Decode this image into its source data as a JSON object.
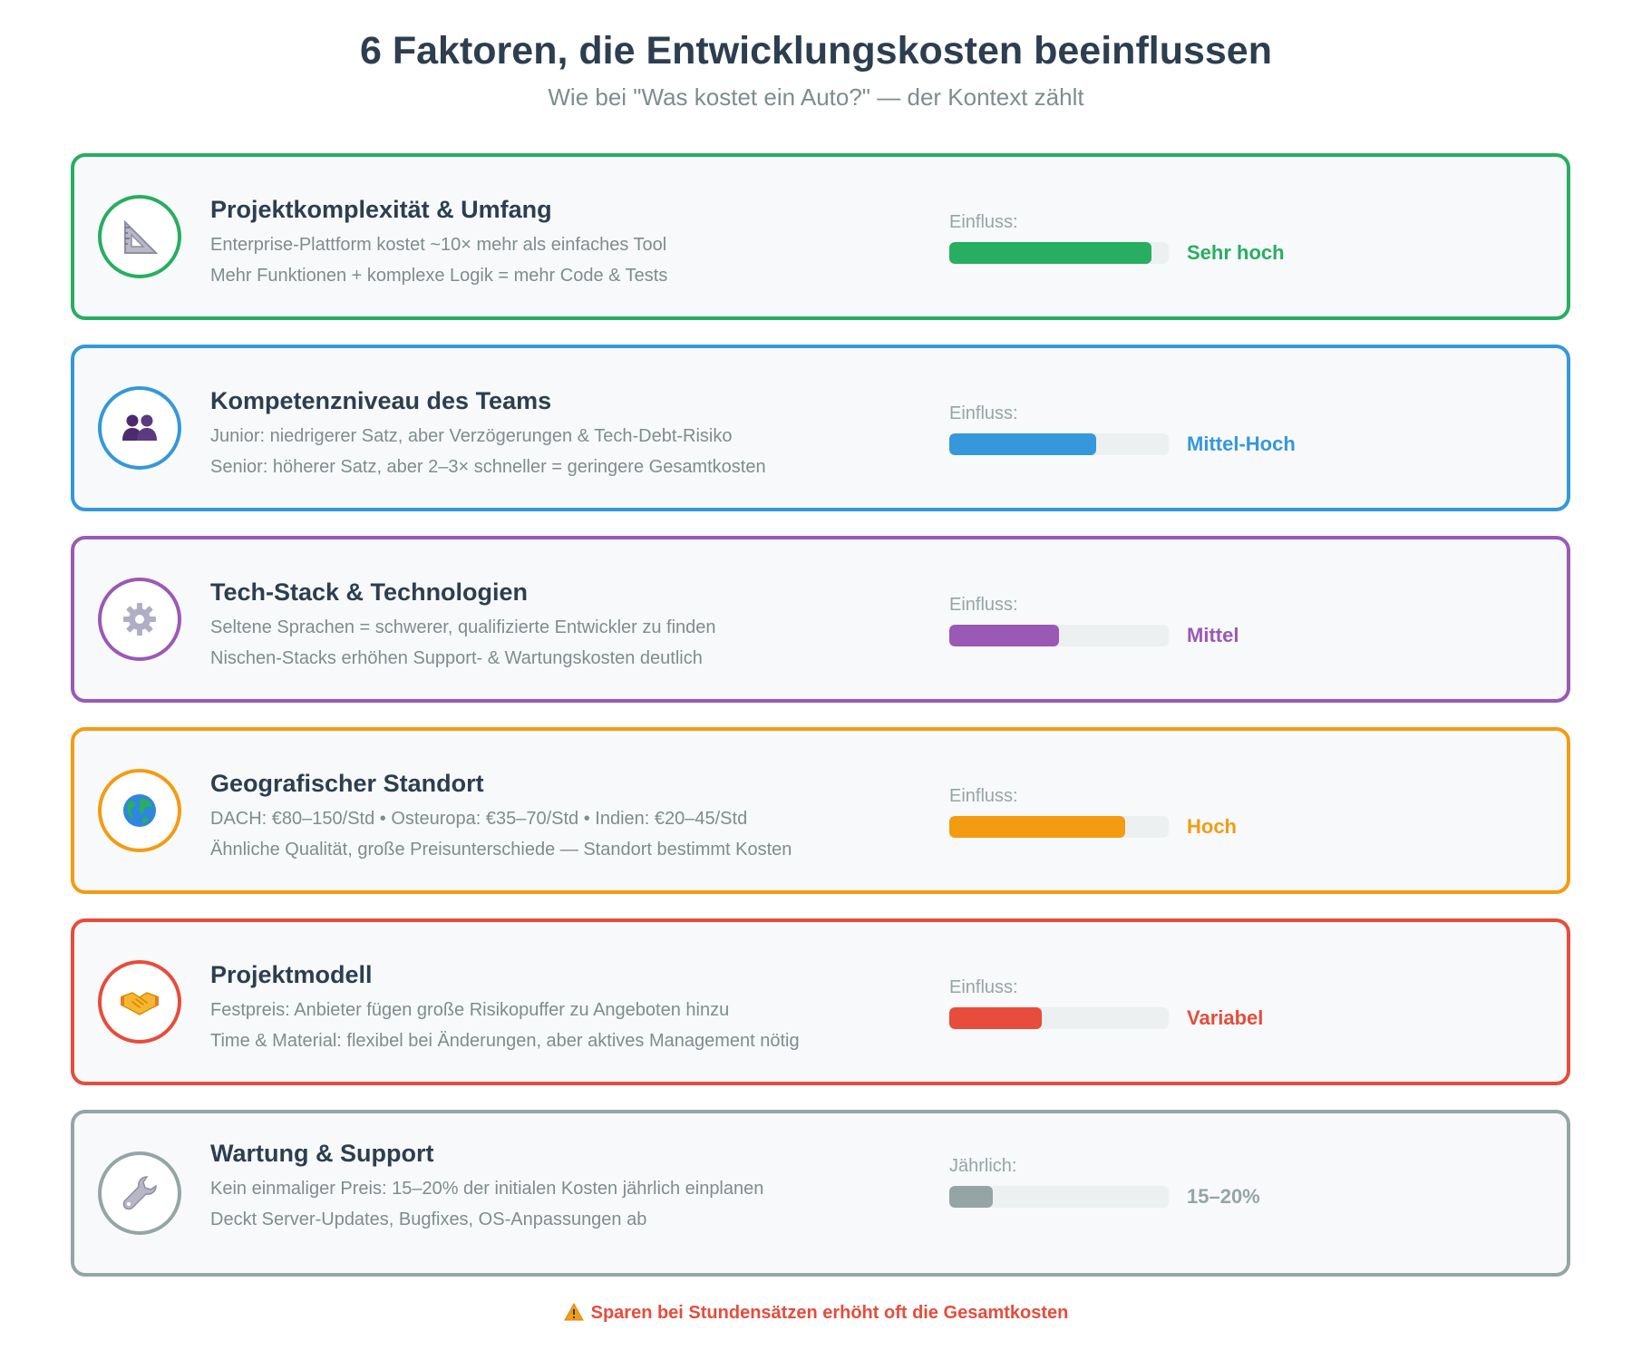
{
  "header": {
    "title": "6 Faktoren, die Entwicklungskosten beeinflussen",
    "subtitle": "Wie bei \"Was kostet ein Auto?\" — der Kontext zählt"
  },
  "factors": [
    {
      "title": "Projektkomplexität & Umfang",
      "line1": "Enterprise-Plattform kostet ~10× mehr als einfaches Tool",
      "line2": "Mehr Funktionen + komplexe Logik = mehr Code & Tests",
      "impact_label": "Einfluss:",
      "impact_value": "Sehr hoch",
      "impact_level": 0.92,
      "color": "#27ae60",
      "icon": "triangle-ruler-icon"
    },
    {
      "title": "Kompetenzniveau des Teams",
      "line1": "Junior: niedrigerer Satz, aber Verzögerungen & Tech-Debt-Risiko",
      "line2": "Senior: höherer Satz, aber 2–3× schneller = geringere Gesamtkosten",
      "impact_label": "Einfluss:",
      "impact_value": "Mittel-Hoch",
      "impact_level": 0.67,
      "color": "#3498db",
      "icon": "people-icon"
    },
    {
      "title": "Tech-Stack & Technologien",
      "line1": "Seltene Sprachen = schwerer, qualifizierte Entwickler zu finden",
      "line2": "Nischen-Stacks erhöhen Support- & Wartungskosten deutlich",
      "impact_label": "Einfluss:",
      "impact_value": "Mittel",
      "impact_level": 0.5,
      "color": "#9b59b6",
      "icon": "gear-icon"
    },
    {
      "title": "Geografischer Standort",
      "line1": "DACH: €80–150/Std • Osteuropa: €35–70/Std • Indien: €20–45/Std",
      "line2": "Ähnliche Qualität, große Preisunterschiede — Standort bestimmt Kosten",
      "impact_label": "Einfluss:",
      "impact_value": "Hoch",
      "impact_level": 0.8,
      "color": "#f39c12",
      "icon": "globe-icon"
    },
    {
      "title": "Projektmodell",
      "line1": "Festpreis: Anbieter fügen große Risikopuffer zu Angeboten hinzu",
      "line2": "Time & Material: flexibel bei Änderungen, aber aktives Management nötig",
      "impact_label": "Einfluss:",
      "impact_value": "Variabel",
      "impact_level": 0.42,
      "color": "#e74c3c",
      "icon": "handshake-icon"
    },
    {
      "title": "Wartung & Support",
      "line1": "Kein einmaliger Preis: 15–20% der initialen Kosten jährlich einplanen",
      "line2": "Deckt Server-Updates, Bugfixes, OS-Anpassungen ab",
      "impact_label": "Jährlich:",
      "impact_value": "15–20%",
      "impact_level": 0.2,
      "color": "#95a5a6",
      "icon": "wrench-icon"
    }
  ],
  "footer": {
    "text": "Sparen bei Stundensätzen erhöht oft die Gesamtkosten",
    "icon": "warning-icon"
  }
}
